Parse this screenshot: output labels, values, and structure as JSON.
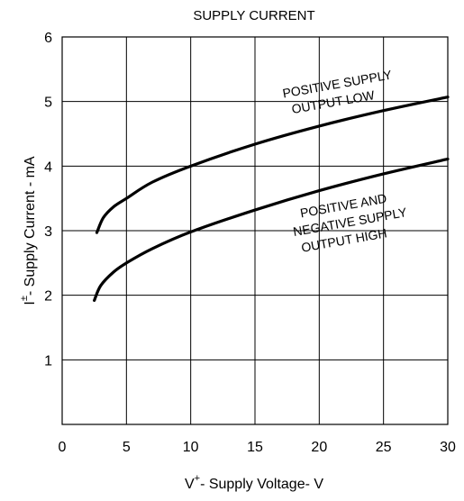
{
  "chart_data": {
    "type": "line",
    "title": "SUPPLY CURRENT",
    "xlabel": "V+ - Supply Voltage- V",
    "xlabel_parts": {
      "pre": "V",
      "sup": "+",
      "post": "- Supply Voltage- V"
    },
    "ylabel": "I± - Supply Current - mA",
    "ylabel_parts": {
      "pre": "I",
      "sup": "±",
      "post": "- Supply Current - mA"
    },
    "xlim": [
      0,
      30
    ],
    "ylim": [
      0,
      6
    ],
    "x_ticks": [
      "0",
      "5",
      "10",
      "15",
      "20",
      "25",
      "30"
    ],
    "y_ticks": [
      "1",
      "2",
      "3",
      "4",
      "5",
      "6"
    ],
    "grid": true,
    "series": [
      {
        "name": "POSITIVE SUPPLY OUTPUT LOW",
        "label_lines": [
          "POSITIVE  SUPPLY",
          "OUTPUT LOW"
        ],
        "x": [
          2.7,
          3.2,
          4,
          5,
          7,
          10,
          15,
          20,
          25,
          30
        ],
        "y": [
          2.97,
          3.2,
          3.37,
          3.5,
          3.75,
          4.0,
          4.34,
          4.62,
          4.86,
          5.07
        ]
      },
      {
        "name": "POSITIVE AND NEGATIVE SUPPLY OUTPUT HIGH",
        "label_lines": [
          "POSITIVE AND",
          "NEGATIVE SUPPLY",
          "OUTPUT HIGH"
        ],
        "x": [
          2.5,
          3,
          4,
          5,
          7,
          10,
          15,
          20,
          25,
          30
        ],
        "y": [
          1.92,
          2.15,
          2.36,
          2.5,
          2.72,
          2.98,
          3.32,
          3.62,
          3.88,
          4.11
        ]
      }
    ]
  }
}
